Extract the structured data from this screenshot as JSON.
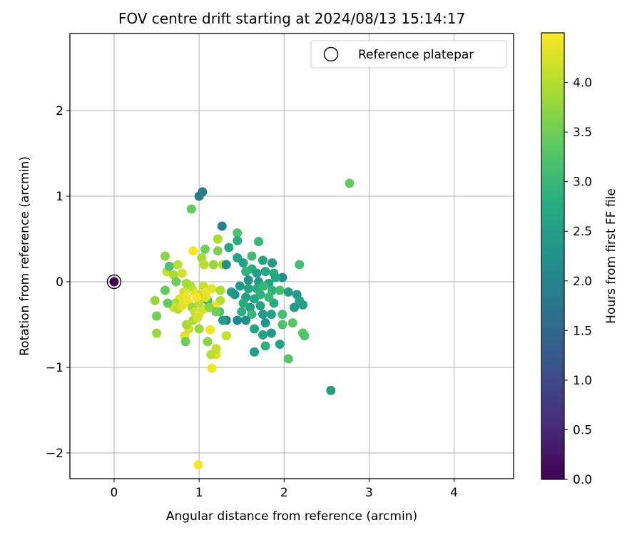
{
  "chart_data": {
    "type": "scatter",
    "title": "FOV centre drift starting at 2024/08/13 15:14:17",
    "xlabel": "Angular distance from reference (arcmin)",
    "ylabel": "Rotation from reference (arcmin)",
    "xlim": [
      -0.52,
      4.7
    ],
    "ylim": [
      -2.3,
      2.9
    ],
    "xticks": [
      0,
      1,
      2,
      3,
      4
    ],
    "yticks": [
      -2,
      -1,
      0,
      1,
      2
    ],
    "xtick_labels": [
      "0",
      "1",
      "2",
      "3",
      "4"
    ],
    "ytick_labels": [
      "−2",
      "−1",
      "0",
      "1",
      "2"
    ],
    "grid": true,
    "colormap": "viridis",
    "colorbar": {
      "label": "Hours from first FF file",
      "range": [
        0,
        4.5
      ],
      "ticks": [
        0.0,
        0.5,
        1.0,
        1.5,
        2.0,
        2.5,
        3.0,
        3.5,
        4.0
      ],
      "tick_labels": [
        "0.0",
        "0.5",
        "1.0",
        "1.5",
        "2.0",
        "2.5",
        "3.0",
        "3.5",
        "4.0"
      ]
    },
    "legend": {
      "placement": "upper right",
      "entries": [
        {
          "label": "Reference platepar",
          "marker": "hollow circle"
        }
      ]
    },
    "reference_point": {
      "x": 0,
      "y": 0,
      "c": 0.0
    },
    "points": [
      {
        "x": 1.0,
        "y": 1.0,
        "c": 1.9
      },
      {
        "x": 1.04,
        "y": 1.05,
        "c": 1.85
      },
      {
        "x": 1.27,
        "y": 0.65,
        "c": 1.95
      },
      {
        "x": 0.91,
        "y": 0.85,
        "c": 3.4
      },
      {
        "x": 2.77,
        "y": 1.15,
        "c": 3.4
      },
      {
        "x": 2.55,
        "y": -1.27,
        "c": 2.5
      },
      {
        "x": 0.99,
        "y": -2.14,
        "c": 4.45
      },
      {
        "x": 1.15,
        "y": -1.01,
        "c": 4.4
      },
      {
        "x": 2.05,
        "y": -0.9,
        "c": 3.3
      },
      {
        "x": 1.65,
        "y": -0.82,
        "c": 2.5
      },
      {
        "x": 1.2,
        "y": -0.85,
        "c": 4.3
      },
      {
        "x": 1.14,
        "y": -0.85,
        "c": 4.0
      },
      {
        "x": 1.2,
        "y": -0.78,
        "c": 4.1
      },
      {
        "x": 1.1,
        "y": -0.7,
        "c": 3.7
      },
      {
        "x": 1.32,
        "y": -0.63,
        "c": 4.1
      },
      {
        "x": 2.22,
        "y": -0.6,
        "c": 3.3
      },
      {
        "x": 2.24,
        "y": -0.63,
        "c": 3.2
      },
      {
        "x": 1.78,
        "y": -0.75,
        "c": 2.9
      },
      {
        "x": 1.95,
        "y": -0.73,
        "c": 2.6
      },
      {
        "x": 1.85,
        "y": -0.6,
        "c": 2.4
      },
      {
        "x": 1.75,
        "y": -0.62,
        "c": 2.6
      },
      {
        "x": 1.65,
        "y": -0.55,
        "c": 2.6
      },
      {
        "x": 0.5,
        "y": -0.6,
        "c": 3.8
      },
      {
        "x": 0.83,
        "y": -0.63,
        "c": 4.3
      },
      {
        "x": 0.84,
        "y": -0.7,
        "c": 3.5
      },
      {
        "x": 1.13,
        "y": -0.56,
        "c": 4.4
      },
      {
        "x": 0.88,
        "y": -0.55,
        "c": 4.2
      },
      {
        "x": 0.85,
        "y": -0.5,
        "c": 3.9
      },
      {
        "x": 1.0,
        "y": -0.55,
        "c": 3.8
      },
      {
        "x": 0.5,
        "y": -0.4,
        "c": 3.5
      },
      {
        "x": 0.48,
        "y": -0.22,
        "c": 3.8
      },
      {
        "x": 0.6,
        "y": -0.1,
        "c": 3.4
      },
      {
        "x": 0.6,
        "y": 0.3,
        "c": 3.7
      },
      {
        "x": 0.62,
        "y": 0.12,
        "c": 4.1
      },
      {
        "x": 0.65,
        "y": 0.18,
        "c": 3.2
      },
      {
        "x": 0.7,
        "y": 0.08,
        "c": 3.9
      },
      {
        "x": 0.75,
        "y": 0.2,
        "c": 4.0
      },
      {
        "x": 0.8,
        "y": 0.1,
        "c": 4.2
      },
      {
        "x": 0.73,
        "y": 0.0,
        "c": 3.5
      },
      {
        "x": 0.93,
        "y": 0.36,
        "c": 4.45
      },
      {
        "x": 1.07,
        "y": 0.38,
        "c": 3.5
      },
      {
        "x": 1.22,
        "y": 0.5,
        "c": 3.9
      },
      {
        "x": 1.22,
        "y": 0.36,
        "c": 3.6
      },
      {
        "x": 1.35,
        "y": 0.4,
        "c": 2.7
      },
      {
        "x": 1.45,
        "y": 0.57,
        "c": 3.2
      },
      {
        "x": 1.45,
        "y": 0.48,
        "c": 2.8
      },
      {
        "x": 1.7,
        "y": 0.47,
        "c": 3.0
      },
      {
        "x": 1.03,
        "y": 0.28,
        "c": 3.9
      },
      {
        "x": 1.06,
        "y": 0.2,
        "c": 4.0
      },
      {
        "x": 1.17,
        "y": 0.2,
        "c": 3.8
      },
      {
        "x": 1.28,
        "y": 0.2,
        "c": 4.0
      },
      {
        "x": 1.32,
        "y": 0.2,
        "c": 2.2
      },
      {
        "x": 1.45,
        "y": 0.28,
        "c": 2.6
      },
      {
        "x": 1.62,
        "y": 0.3,
        "c": 3.1
      },
      {
        "x": 1.52,
        "y": 0.22,
        "c": 2.5
      },
      {
        "x": 1.75,
        "y": 0.25,
        "c": 2.6
      },
      {
        "x": 1.86,
        "y": 0.22,
        "c": 2.4
      },
      {
        "x": 1.62,
        "y": 0.15,
        "c": 2.8
      },
      {
        "x": 1.55,
        "y": 0.12,
        "c": 2.9
      },
      {
        "x": 1.68,
        "y": 0.1,
        "c": 2.5
      },
      {
        "x": 1.78,
        "y": 0.12,
        "c": 2.7
      },
      {
        "x": 1.88,
        "y": 0.1,
        "c": 2.8
      },
      {
        "x": 1.98,
        "y": 0.05,
        "c": 2.2
      },
      {
        "x": 2.18,
        "y": 0.2,
        "c": 3.1
      },
      {
        "x": 1.58,
        "y": 0.02,
        "c": 2.3
      },
      {
        "x": 1.7,
        "y": 0.0,
        "c": 2.4
      },
      {
        "x": 1.82,
        "y": -0.02,
        "c": 2.6
      },
      {
        "x": 1.9,
        "y": 0.05,
        "c": 2.7
      },
      {
        "x": 1.48,
        "y": -0.05,
        "c": 2.4
      },
      {
        "x": 1.58,
        "y": -0.08,
        "c": 2.6
      },
      {
        "x": 1.68,
        "y": -0.08,
        "c": 2.8
      },
      {
        "x": 1.76,
        "y": -0.05,
        "c": 3.0
      },
      {
        "x": 1.86,
        "y": -0.1,
        "c": 2.9
      },
      {
        "x": 1.95,
        "y": -0.1,
        "c": 3.1
      },
      {
        "x": 2.05,
        "y": -0.12,
        "c": 2.5
      },
      {
        "x": 2.15,
        "y": -0.15,
        "c": 2.4
      },
      {
        "x": 2.18,
        "y": -0.22,
        "c": 2.6
      },
      {
        "x": 2.22,
        "y": -0.27,
        "c": 2.5
      },
      {
        "x": 2.12,
        "y": -0.3,
        "c": 2.4
      },
      {
        "x": 1.38,
        "y": -0.12,
        "c": 2.5
      },
      {
        "x": 1.42,
        "y": -0.15,
        "c": 2.3
      },
      {
        "x": 1.55,
        "y": -0.18,
        "c": 2.5
      },
      {
        "x": 1.65,
        "y": -0.2,
        "c": 2.7
      },
      {
        "x": 1.72,
        "y": -0.15,
        "c": 2.9
      },
      {
        "x": 1.82,
        "y": -0.18,
        "c": 3.0
      },
      {
        "x": 1.88,
        "y": -0.25,
        "c": 2.8
      },
      {
        "x": 1.72,
        "y": -0.28,
        "c": 2.6
      },
      {
        "x": 1.6,
        "y": -0.3,
        "c": 2.5
      },
      {
        "x": 1.52,
        "y": -0.25,
        "c": 2.8
      },
      {
        "x": 1.5,
        "y": -0.35,
        "c": 2.9
      },
      {
        "x": 1.62,
        "y": -0.38,
        "c": 3.0
      },
      {
        "x": 1.75,
        "y": -0.38,
        "c": 2.4
      },
      {
        "x": 1.85,
        "y": -0.38,
        "c": 2.6
      },
      {
        "x": 1.98,
        "y": -0.38,
        "c": 3.1
      },
      {
        "x": 1.98,
        "y": -0.5,
        "c": 3.2
      },
      {
        "x": 2.1,
        "y": -0.48,
        "c": 3.3
      },
      {
        "x": 1.78,
        "y": -0.48,
        "c": 2.3
      },
      {
        "x": 1.55,
        "y": -0.45,
        "c": 2.2
      },
      {
        "x": 1.45,
        "y": -0.45,
        "c": 2.1
      },
      {
        "x": 1.32,
        "y": -0.45,
        "c": 2.0
      },
      {
        "x": 1.28,
        "y": -0.45,
        "c": 2.5
      },
      {
        "x": 1.24,
        "y": -0.35,
        "c": 3.2
      },
      {
        "x": 1.25,
        "y": -0.22,
        "c": 4.0
      },
      {
        "x": 1.18,
        "y": -0.28,
        "c": 4.4
      },
      {
        "x": 1.1,
        "y": -0.22,
        "c": 3.0
      },
      {
        "x": 1.08,
        "y": -0.18,
        "c": 4.3
      },
      {
        "x": 1.0,
        "y": -0.15,
        "c": 4.1
      },
      {
        "x": 0.93,
        "y": -0.1,
        "c": 4.3
      },
      {
        "x": 0.9,
        "y": -0.05,
        "c": 4.0
      },
      {
        "x": 0.85,
        "y": -0.02,
        "c": 3.9
      },
      {
        "x": 0.82,
        "y": -0.12,
        "c": 4.2
      },
      {
        "x": 0.85,
        "y": -0.18,
        "c": 4.4
      },
      {
        "x": 0.77,
        "y": -0.2,
        "c": 4.3
      },
      {
        "x": 0.72,
        "y": -0.25,
        "c": 3.9
      },
      {
        "x": 0.7,
        "y": -0.3,
        "c": 4.2
      },
      {
        "x": 0.75,
        "y": -0.32,
        "c": 4.0
      },
      {
        "x": 0.8,
        "y": -0.28,
        "c": 4.3
      },
      {
        "x": 0.88,
        "y": -0.25,
        "c": 4.4
      },
      {
        "x": 0.92,
        "y": -0.3,
        "c": 3.8
      },
      {
        "x": 0.95,
        "y": -0.35,
        "c": 4.1
      },
      {
        "x": 1.0,
        "y": -0.38,
        "c": 4.3
      },
      {
        "x": 1.05,
        "y": -0.32,
        "c": 4.2
      },
      {
        "x": 1.0,
        "y": -0.25,
        "c": 4.0
      },
      {
        "x": 1.12,
        "y": -0.3,
        "c": 3.7
      },
      {
        "x": 1.2,
        "y": -0.35,
        "c": 3.5
      },
      {
        "x": 0.63,
        "y": -0.25,
        "c": 3.4
      },
      {
        "x": 0.93,
        "y": -0.45,
        "c": 3.9
      },
      {
        "x": 0.98,
        "y": -0.42,
        "c": 4.2
      },
      {
        "x": 1.05,
        "y": -0.05,
        "c": 4.1
      },
      {
        "x": 1.15,
        "y": -0.08,
        "c": 4.3
      },
      {
        "x": 1.25,
        "y": -0.1,
        "c": 3.9
      },
      {
        "x": 0.97,
        "y": -0.18,
        "c": 4.45
      },
      {
        "x": 1.08,
        "y": -0.12,
        "c": 4.35
      }
    ]
  }
}
